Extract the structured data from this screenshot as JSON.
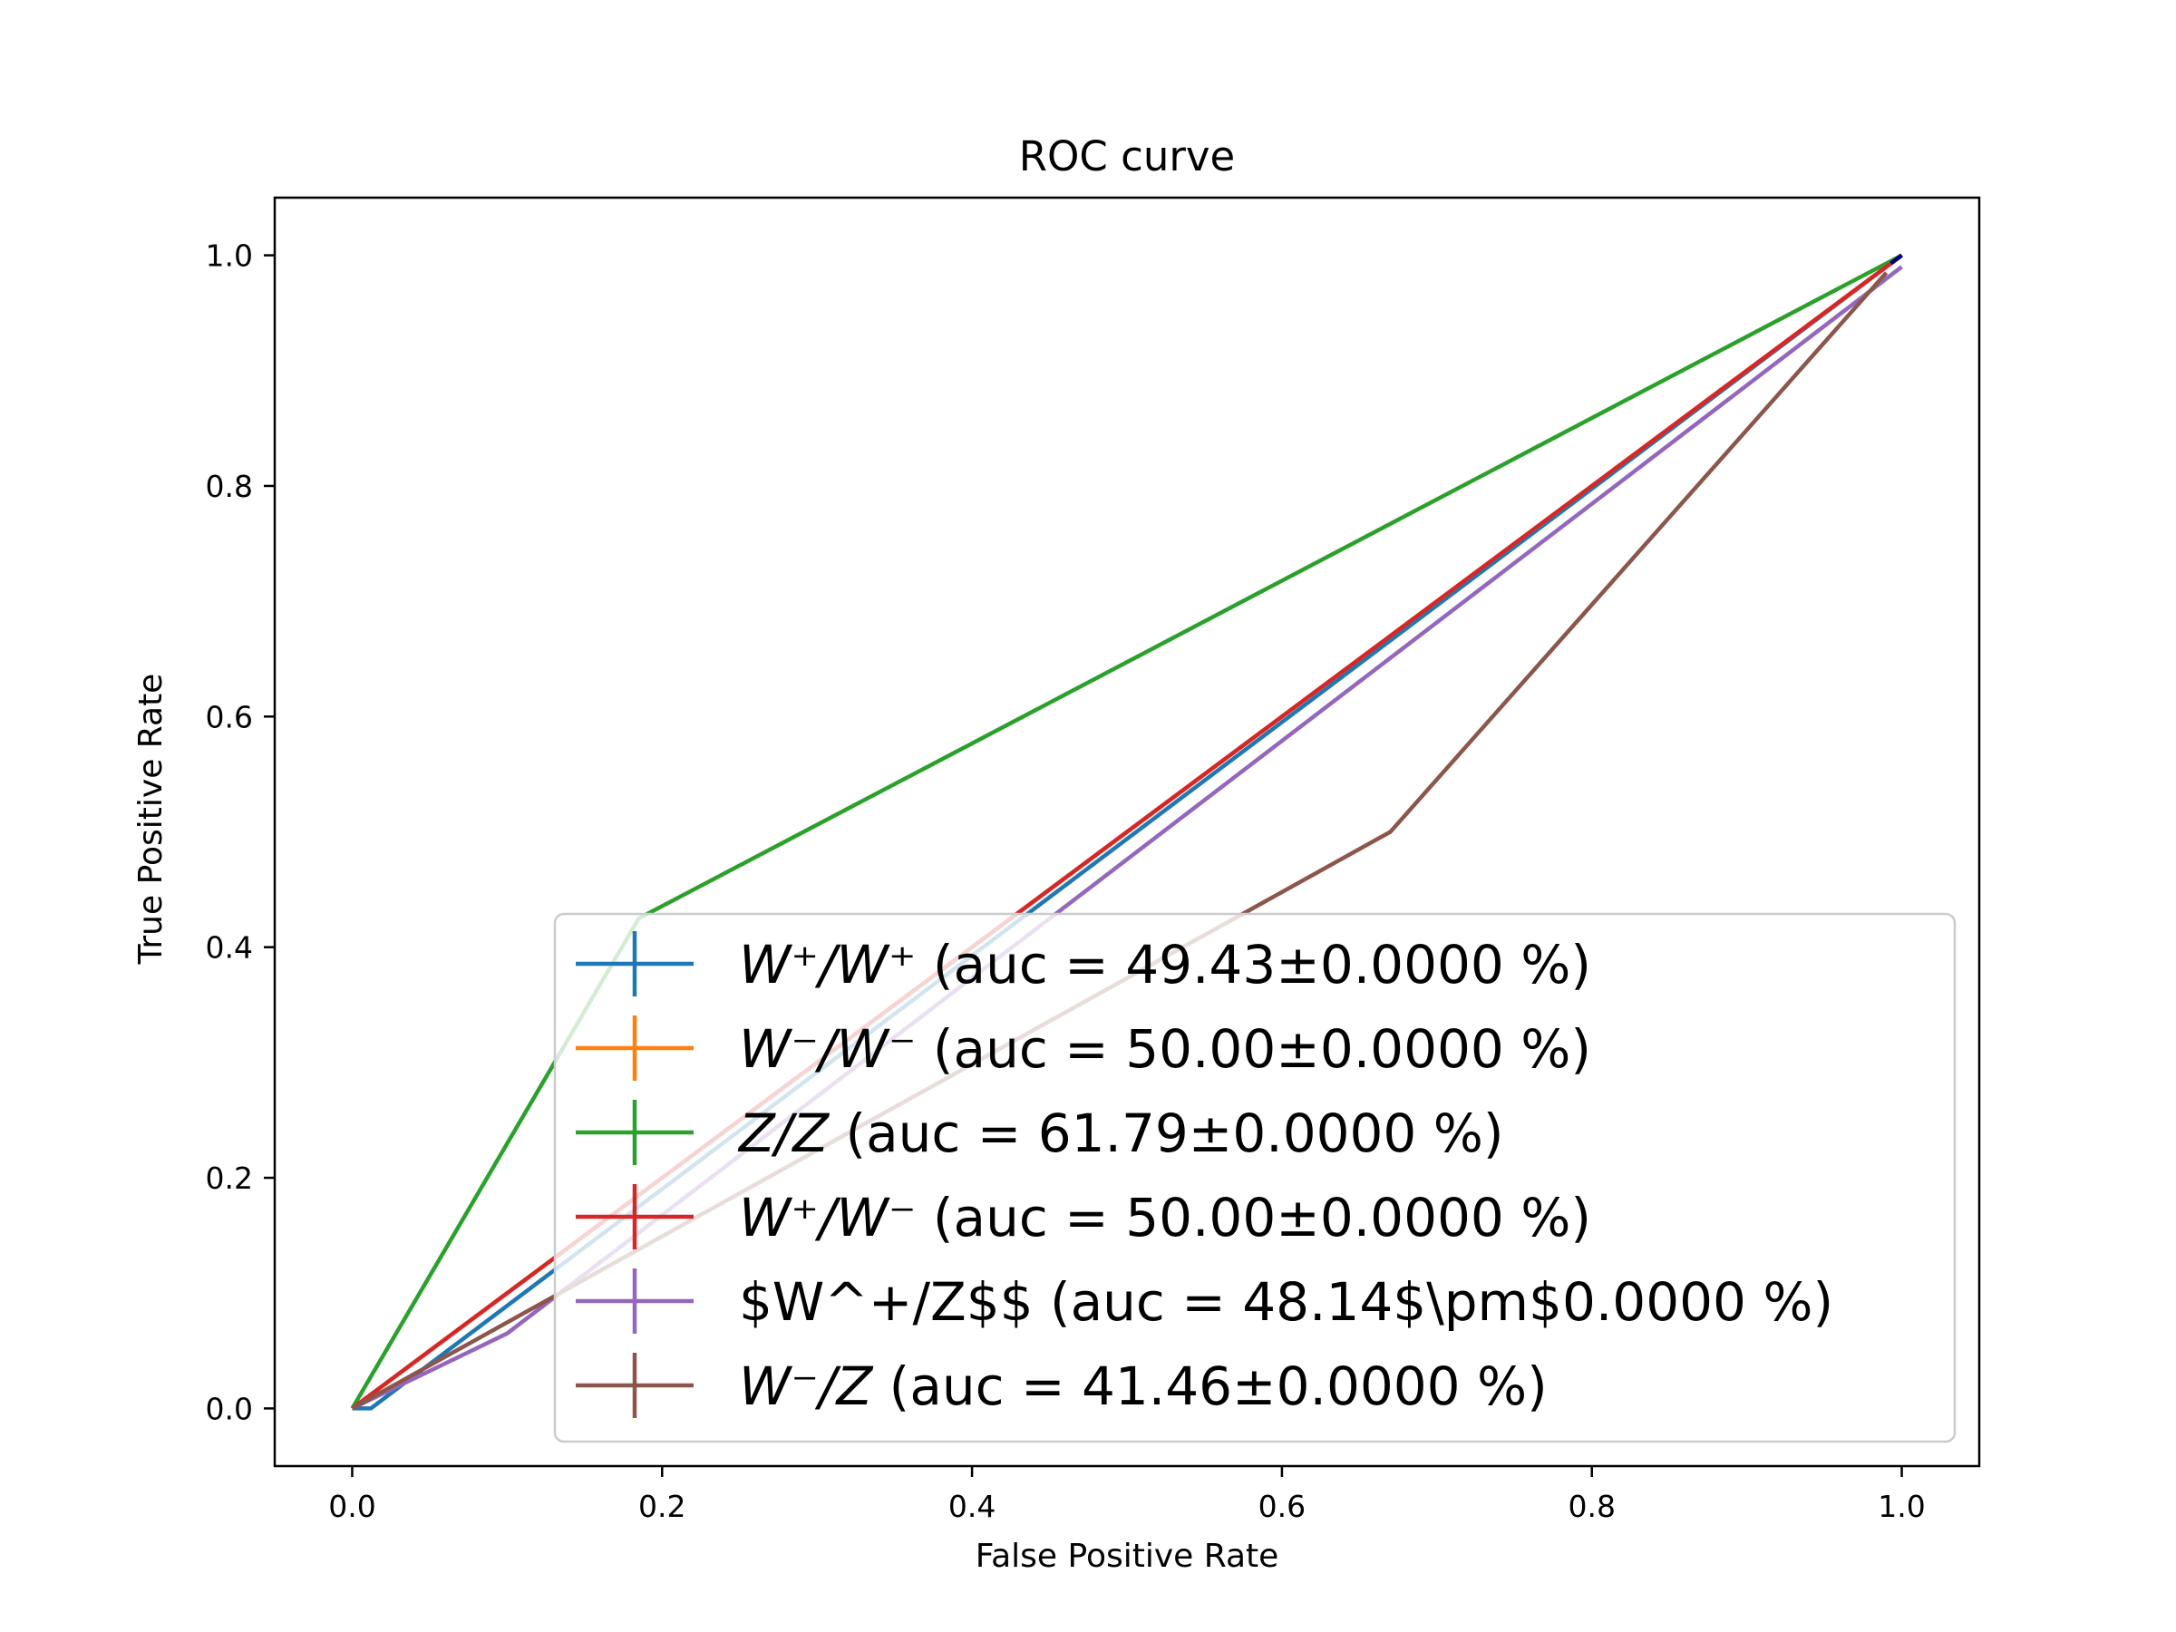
{
  "chart_data": {
    "type": "line",
    "title": "ROC curve",
    "xlabel": "False Positive Rate",
    "ylabel": "True Positive Rate",
    "xlim": [
      -0.05,
      1.05
    ],
    "ylim": [
      -0.05,
      1.05
    ],
    "xticks": [
      0.0,
      0.2,
      0.4,
      0.6,
      0.8,
      1.0
    ],
    "xtick_labels": [
      "0.0",
      "0.2",
      "0.4",
      "0.6",
      "0.8",
      "1.0"
    ],
    "yticks": [
      0.0,
      0.2,
      0.4,
      0.6,
      0.8,
      1.0
    ],
    "ytick_labels": [
      "0.0",
      "0.2",
      "0.4",
      "0.6",
      "0.8",
      "1.0"
    ],
    "grid": false,
    "legend_position": "lower-right",
    "series": [
      {
        "label_math": "W⁺/W⁺",
        "label_rest": " (auc = 49.43±0.0000 %)",
        "color": "#1f77b4",
        "x": [
          0.0,
          0.012,
          1.0
        ],
        "y": [
          0.0,
          0.0,
          1.0
        ]
      },
      {
        "label_math": "W⁻/W⁻",
        "label_rest": " (auc = 50.00±0.0000 %)",
        "color": "#ff7f0e",
        "x": [
          0.0,
          1.0
        ],
        "y": [
          0.0,
          1.0
        ]
      },
      {
        "label_math": "Z/Z",
        "label_rest": " (auc = 61.79±0.0000 %)",
        "color": "#2ca02c",
        "x": [
          0.0,
          0.185,
          1.0
        ],
        "y": [
          0.0,
          0.425,
          1.0
        ]
      },
      {
        "label_math": "W⁺/W⁻",
        "label_rest": " (auc = 50.00±0.0000 %)",
        "color": "#d62728",
        "x": [
          0.0,
          1.0
        ],
        "y": [
          0.0,
          1.0
        ]
      },
      {
        "label_math": "",
        "label_rest": "$W^+/Z$$ (auc = 48.14$\\pm$0.0000 %)",
        "color": "#9467bd",
        "x": [
          0.0,
          0.1,
          1.0
        ],
        "y": [
          0.0,
          0.065,
          0.99
        ]
      },
      {
        "label_math": "W⁻/Z",
        "label_rest": " (auc = 41.46±0.0000 %)",
        "color": "#8c564b",
        "x": [
          0.0,
          0.67,
          0.99
        ],
        "y": [
          0.0,
          0.5,
          0.985
        ]
      }
    ],
    "reference_line": {
      "color": "#000080",
      "x": [
        0.993,
        1.0
      ],
      "y": [
        0.993,
        1.0
      ]
    }
  }
}
